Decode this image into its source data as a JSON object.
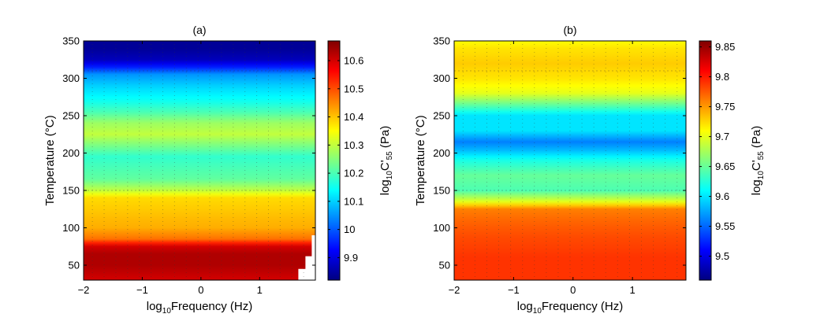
{
  "chart_data": [
    {
      "type": "heatmap",
      "title": "(a)",
      "xlabel_prefix": "log",
      "xlabel_sub": "10",
      "xlabel_rest": "Frequency (Hz)",
      "ylabel": "Temperature (°C)",
      "xlim": [
        -2,
        1.95
      ],
      "ylim": [
        30,
        350
      ],
      "xticks": [
        -2,
        -1,
        0,
        1
      ],
      "xtick_labels": [
        "−2",
        "−1",
        "0",
        "1"
      ],
      "yticks": [
        50,
        100,
        150,
        200,
        250,
        300,
        350
      ],
      "ytick_labels": [
        "50",
        "100",
        "150",
        "200",
        "250",
        "300",
        "350"
      ],
      "colorbar": {
        "label_prefix": "log",
        "label_sub1": "10",
        "label_mid": "C'",
        "label_sub2": "55",
        "label_rest": " (Pa)",
        "range": [
          9.82,
          10.67
        ],
        "ticks": [
          9.9,
          10,
          10.1,
          10.2,
          10.3,
          10.4,
          10.5,
          10.6
        ],
        "tick_labels": [
          "9.9",
          "10",
          "10.1",
          "10.2",
          "10.3",
          "10.4",
          "10.5",
          "10.6"
        ]
      },
      "profile": [
        [
          30,
          10.6
        ],
        [
          50,
          10.63
        ],
        [
          65,
          10.63
        ],
        [
          75,
          10.6
        ],
        [
          85,
          10.47
        ],
        [
          100,
          10.42
        ],
        [
          120,
          10.4
        ],
        [
          140,
          10.38
        ],
        [
          150,
          10.3
        ],
        [
          165,
          10.22
        ],
        [
          180,
          10.2
        ],
        [
          195,
          10.18
        ],
        [
          210,
          10.24
        ],
        [
          225,
          10.3
        ],
        [
          240,
          10.27
        ],
        [
          255,
          10.2
        ],
        [
          270,
          10.15
        ],
        [
          290,
          10.1
        ],
        [
          305,
          10.05
        ],
        [
          315,
          9.95
        ],
        [
          325,
          9.87
        ],
        [
          340,
          9.84
        ],
        [
          350,
          9.84
        ]
      ],
      "missing_region_x": 1.7
    },
    {
      "type": "heatmap",
      "title": "(b)",
      "xlabel_prefix": "log",
      "xlabel_sub": "10",
      "xlabel_rest": "Frequency (Hz)",
      "ylabel": "Temperature (°C)",
      "xlim": [
        -2,
        1.9
      ],
      "ylim": [
        30,
        350
      ],
      "xticks": [
        -2,
        -1,
        0,
        1
      ],
      "xtick_labels": [
        "−2",
        "−1",
        "0",
        "1"
      ],
      "yticks": [
        50,
        100,
        150,
        200,
        250,
        300,
        350
      ],
      "ytick_labels": [
        "50",
        "100",
        "150",
        "200",
        "250",
        "300",
        "350"
      ],
      "colorbar": {
        "label_prefix": "log",
        "label_sub1": "10",
        "label_mid": "C'",
        "label_sub2": "55",
        "label_rest": " (Pa)",
        "range": [
          9.46,
          9.86
        ],
        "ticks": [
          9.5,
          9.55,
          9.6,
          9.65,
          9.7,
          9.75,
          9.8,
          9.85
        ],
        "tick_labels": [
          "9.5",
          "9.55",
          "9.6",
          "9.65",
          "9.7",
          "9.75",
          "9.8",
          "9.85"
        ]
      },
      "profile": [
        [
          30,
          9.79
        ],
        [
          60,
          9.79
        ],
        [
          90,
          9.78
        ],
        [
          110,
          9.77
        ],
        [
          125,
          9.76
        ],
        [
          135,
          9.7
        ],
        [
          150,
          9.64
        ],
        [
          170,
          9.65
        ],
        [
          190,
          9.62
        ],
        [
          205,
          9.58
        ],
        [
          215,
          9.56
        ],
        [
          230,
          9.6
        ],
        [
          250,
          9.6
        ],
        [
          265,
          9.65
        ],
        [
          280,
          9.7
        ],
        [
          300,
          9.72
        ],
        [
          320,
          9.73
        ],
        [
          340,
          9.72
        ],
        [
          350,
          9.71
        ]
      ]
    }
  ]
}
